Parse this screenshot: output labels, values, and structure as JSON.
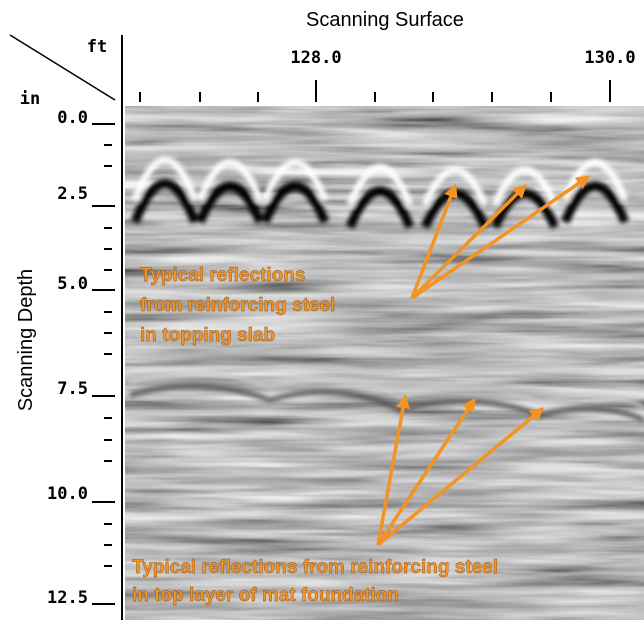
{
  "header": {
    "title": "Scanning Surface",
    "x_unit": "ft",
    "y_unit": "in"
  },
  "x_axis": {
    "ticks": [
      "128.0",
      "130.0"
    ]
  },
  "y_axis": {
    "label": "Scanning Depth",
    "ticks": [
      "0.0",
      "2.5",
      "5.0",
      "7.5",
      "10.0",
      "12.5"
    ]
  },
  "annotations": [
    {
      "lines": [
        "Typical reflections",
        "from reinforcing steel",
        "in topping slab"
      ]
    },
    {
      "lines": [
        "Typical reflections from reinforcing steel",
        "in top layer of mat foundation"
      ]
    }
  ]
}
